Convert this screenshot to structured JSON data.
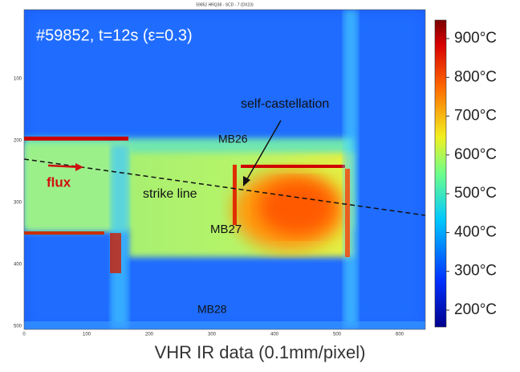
{
  "header": {
    "title": "59852 HRQ38 - SCD - 7 (DX23)"
  },
  "image": {
    "shot_label": "#59852, t=12s (ε=0.3)",
    "annotations": {
      "castellation": "self-castellation",
      "mb26": "MB26",
      "strike": "strike line",
      "mb27": "MB27",
      "mb28": "MB28",
      "flux": "flux"
    },
    "x_ticks": [
      "0",
      "100",
      "200",
      "300",
      "400",
      "500",
      "600"
    ],
    "y_ticks": [
      "100",
      "200",
      "300",
      "400",
      "500"
    ]
  },
  "colorbar": {
    "labels": [
      "900°C",
      "800°C",
      "700°C",
      "600°C",
      "500°C",
      "400°C",
      "300°C",
      "200°C"
    ]
  },
  "caption": "VHR IR data (0.1mm/pixel)"
}
